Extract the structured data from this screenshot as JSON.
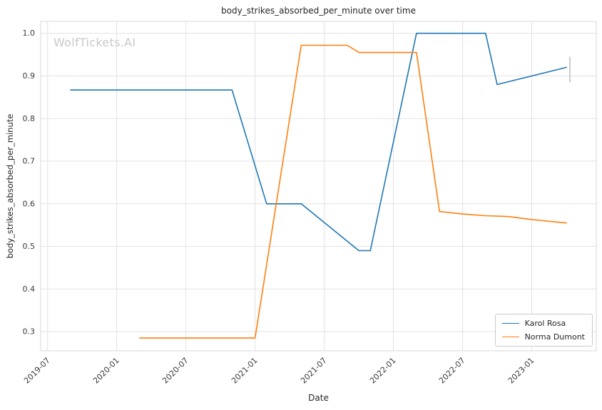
{
  "chart_data": {
    "type": "line",
    "title": "body_strikes_absorbed_per_minute over time",
    "xlabel": "Date",
    "ylabel": "body_strikes_absorbed_per_minute",
    "watermark": "WolfTickets.AI",
    "x_tick_labels": [
      "2019-07",
      "2020-01",
      "2020-07",
      "2021-01",
      "2021-07",
      "2022-01",
      "2022-07",
      "2023-01"
    ],
    "x_ticks_months": [
      0,
      6,
      12,
      18,
      24,
      30,
      36,
      42
    ],
    "y_ticks": [
      0.3,
      0.4,
      0.5,
      0.6,
      0.7,
      0.8,
      0.9,
      1.0
    ],
    "xlim_months": [
      -0.6,
      47.6
    ],
    "ylim": [
      0.255,
      1.028
    ],
    "grid": true,
    "grid_color": "#e2e2e2",
    "spine_color": "#d9d9d9",
    "tick_label_color": "#3b3b3b",
    "legend_position": "lower right",
    "end_marker": {
      "date": "2023-04",
      "y1": 0.945,
      "y2": 0.885
    },
    "series": [
      {
        "name": "Karol Rosa",
        "color": "#1f77b4",
        "points": [
          [
            "2019-09",
            0.867
          ],
          [
            "2020-11",
            0.867
          ],
          [
            "2021-02",
            0.6
          ],
          [
            "2021-05",
            0.6
          ],
          [
            "2021-10",
            0.49
          ],
          [
            "2021-11",
            0.49
          ],
          [
            "2022-03",
            1.0
          ],
          [
            "2022-09",
            1.0
          ],
          [
            "2022-10",
            0.88
          ],
          [
            "2023-04",
            0.92
          ]
        ]
      },
      {
        "name": "Norma Dumont",
        "color": "#ff7f0e",
        "points": [
          [
            "2020-03",
            0.285
          ],
          [
            "2021-01",
            0.285
          ],
          [
            "2021-05",
            0.972
          ],
          [
            "2021-09",
            0.972
          ],
          [
            "2021-10",
            0.955
          ],
          [
            "2022-03",
            0.955
          ],
          [
            "2022-05",
            0.582
          ],
          [
            "2022-07",
            0.576
          ],
          [
            "2022-09",
            0.572
          ],
          [
            "2022-11",
            0.57
          ],
          [
            "2023-01",
            0.563
          ],
          [
            "2023-04",
            0.555
          ]
        ]
      }
    ]
  }
}
